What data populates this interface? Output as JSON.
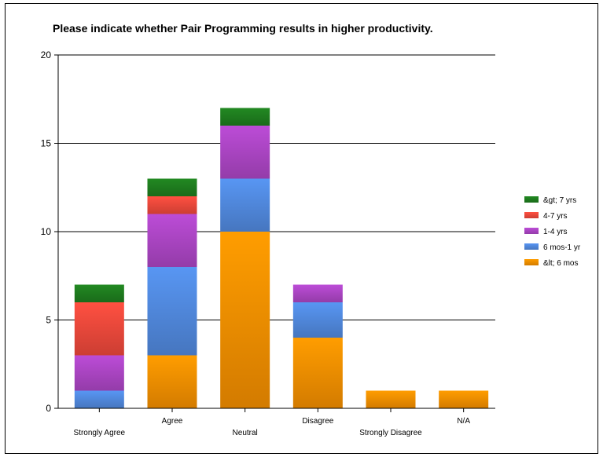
{
  "chart_data": {
    "type": "bar",
    "stacked": true,
    "title": "Please indicate whether Pair Programming results in higher productivity.",
    "xlabel": "",
    "ylabel": "",
    "ylim": [
      0,
      20
    ],
    "yticks": [
      0,
      5,
      10,
      15,
      20
    ],
    "grid": true,
    "legend": "right",
    "categories": [
      "Strongly Agree",
      "Agree",
      "Neutral",
      "Disagree",
      "Strongly Disagree",
      "N/A"
    ],
    "series": [
      {
        "name": "&lt; 6 mos",
        "color": "#f08c00",
        "values": [
          0,
          3,
          10,
          4,
          1,
          1
        ]
      },
      {
        "name": "6 mos-1 yr",
        "color": "#4f86d9",
        "values": [
          1,
          5,
          3,
          2,
          0,
          0
        ]
      },
      {
        "name": "1-4 yrs",
        "color": "#a844c0",
        "values": [
          2,
          3,
          3,
          1,
          0,
          0
        ]
      },
      {
        "name": "4-7 yrs",
        "color": "#e8473a",
        "values": [
          3,
          1,
          0,
          0,
          0,
          0
        ]
      },
      {
        "name": "&gt; 7 yrs",
        "color": "#1e7a1e",
        "values": [
          1,
          1,
          1,
          0,
          0,
          0
        ]
      }
    ]
  }
}
